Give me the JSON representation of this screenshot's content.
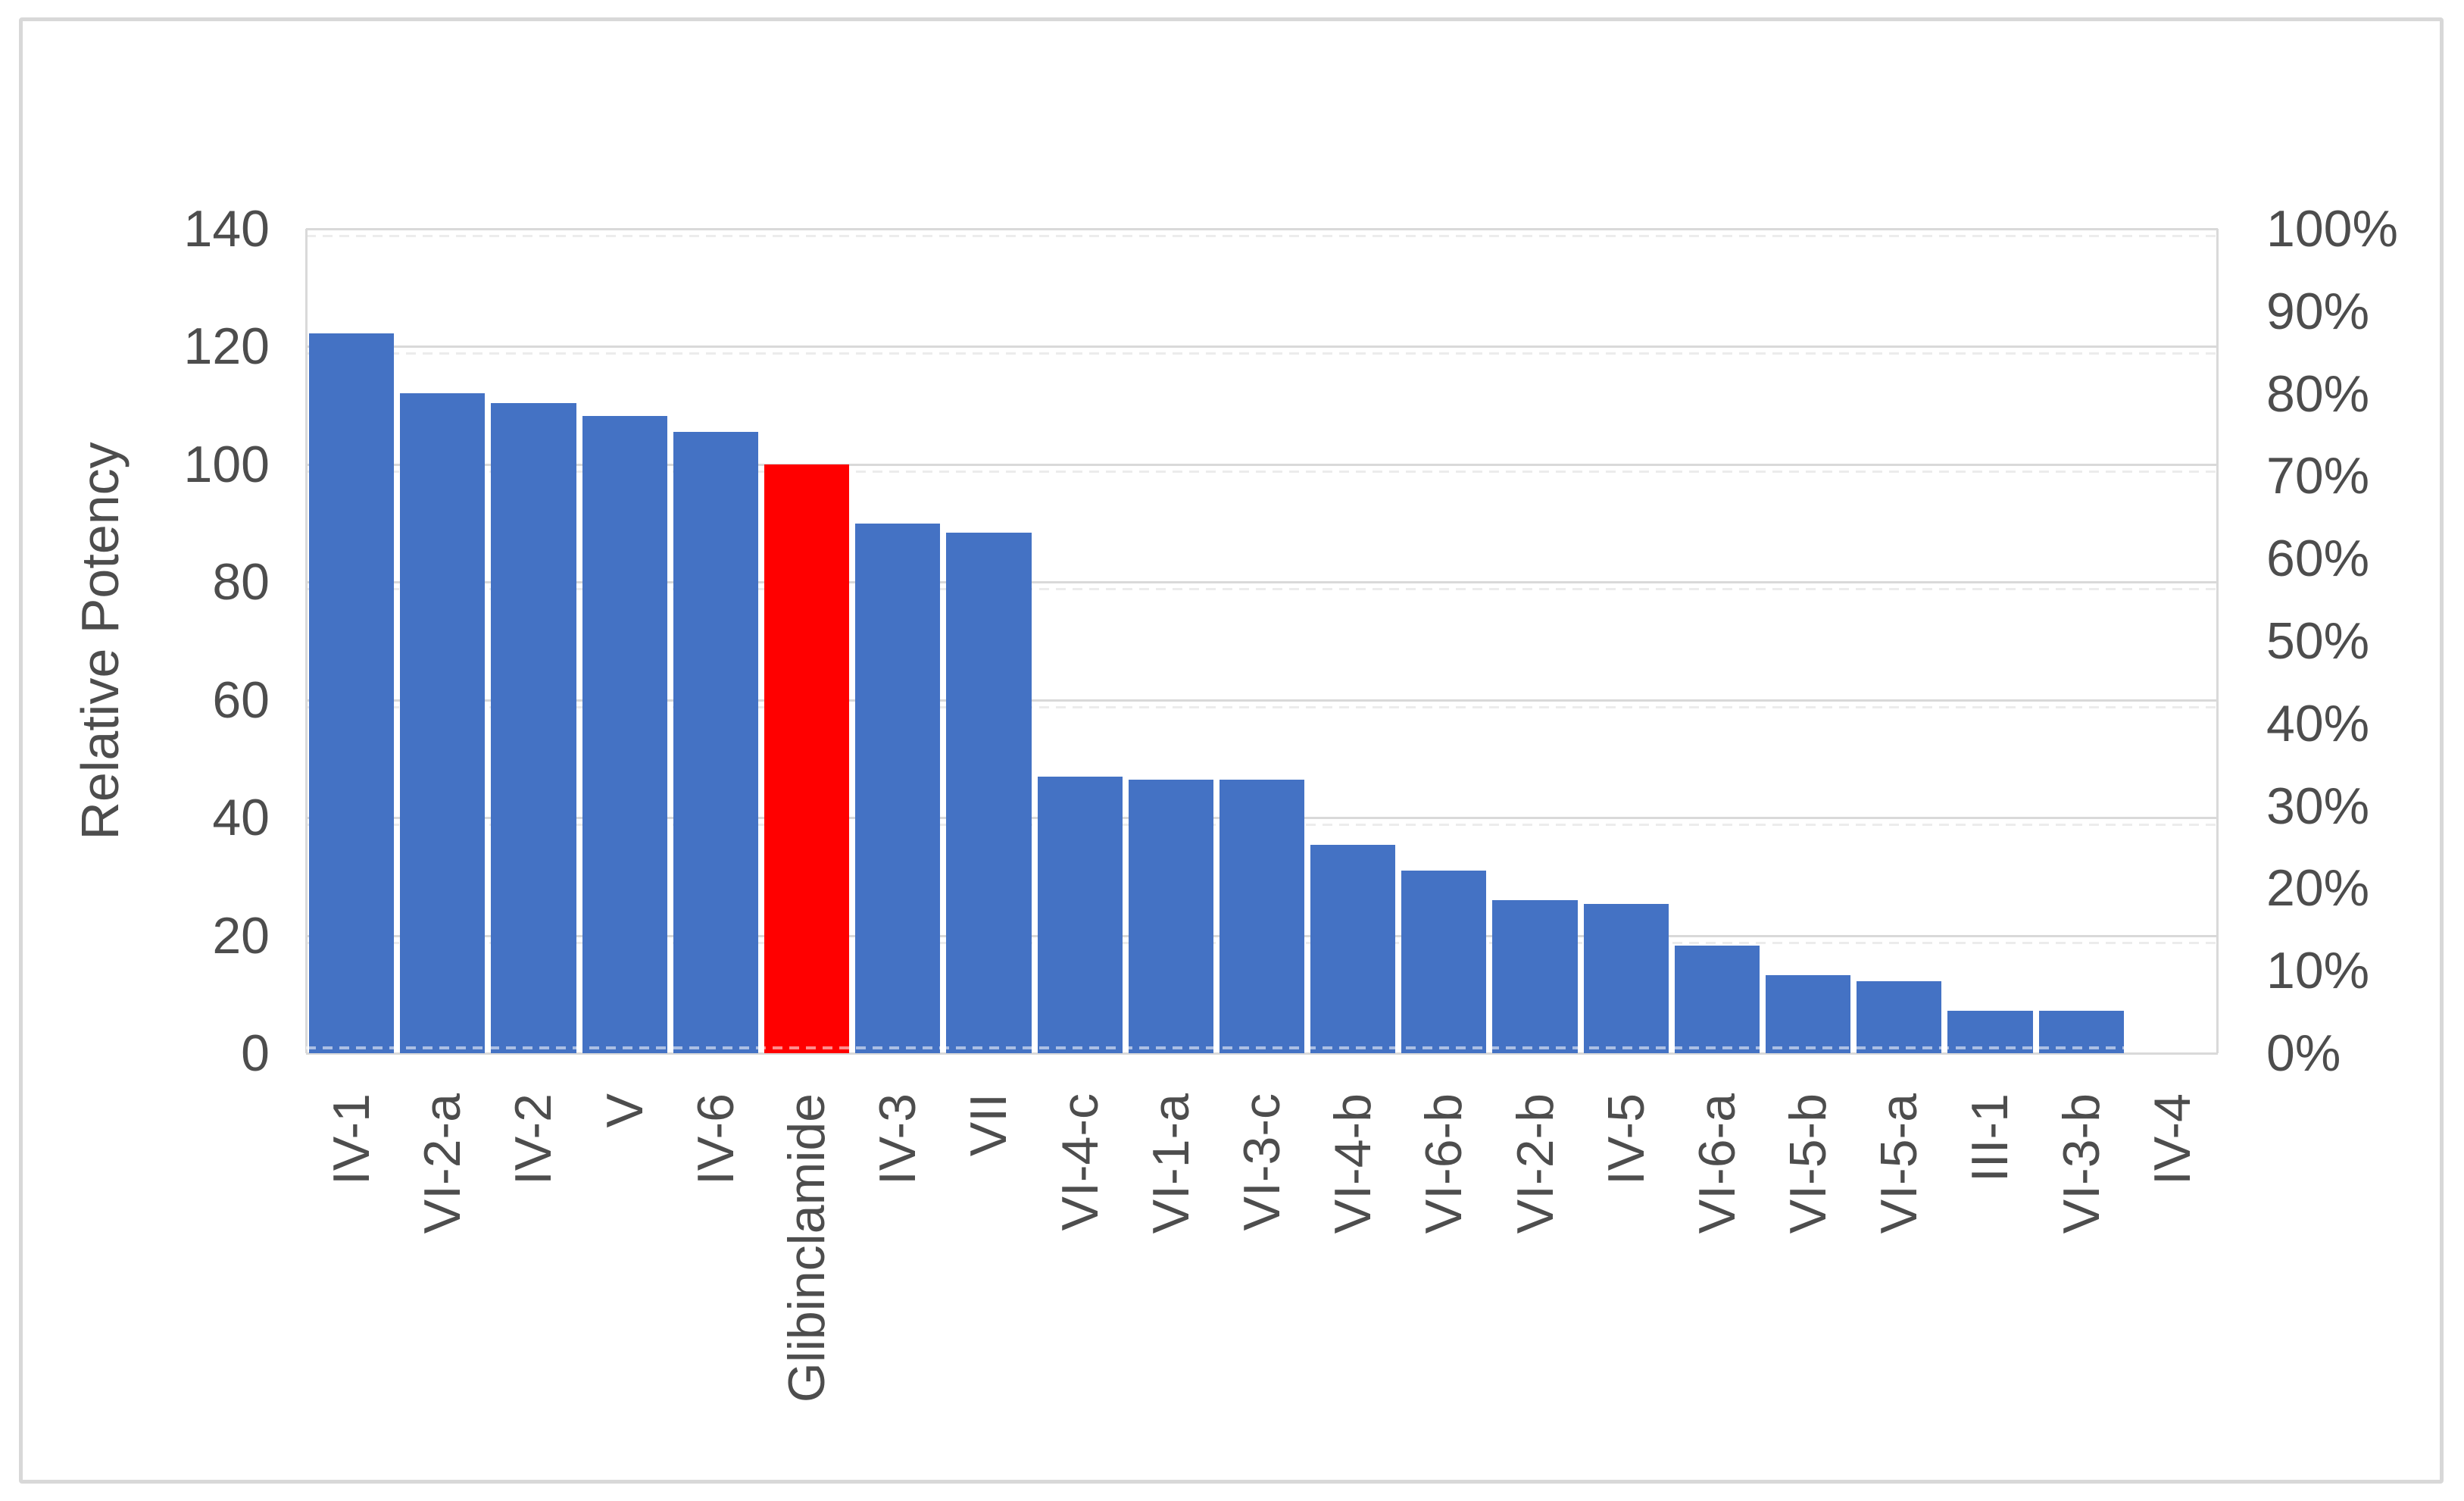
{
  "style": {
    "background": "#FFFFFF",
    "frame_color": "#D8D8D8",
    "gridline_color": "#D9D9D9",
    "text_color": "#4D4D4D"
  },
  "chart_data": {
    "type": "bar",
    "title": "",
    "xlabel": "",
    "ylabel": "Relative Potency",
    "legend_position": "none",
    "grid": "on",
    "categories": [
      "IV-1",
      "VI-2-a",
      "IV-2",
      "V",
      "IV-6",
      "Glibinclamide",
      "IV-3",
      "VII",
      "VI-4-c",
      "VI-1-a",
      "VI-3-c",
      "VI-4-b",
      "VI-6-b",
      "VI-2-b",
      "IV-5",
      "VI-6-a",
      "VI-5-b",
      "VI-5-a",
      "III-1",
      "VI-3-b",
      "IV-4"
    ],
    "values": [
      122.2,
      112.1,
      110.4,
      108.2,
      105.5,
      100,
      90,
      88.4,
      47,
      46.4,
      46.5,
      35.4,
      31,
      26,
      25.4,
      18.3,
      13.3,
      12.2,
      7.2,
      7.2,
      0
    ],
    "highlight_category": "Glibinclamide",
    "bar_color_default": "#4472C4",
    "bar_color_highlight": "#FF0000",
    "left_axis": {
      "title": "Relative Potency",
      "min": 0,
      "max": 140,
      "ticks": [
        140,
        120,
        100,
        80,
        60,
        40,
        20,
        0
      ]
    },
    "right_axis": {
      "ticks": [
        "100%",
        "90%",
        "80%",
        "70%",
        "60%",
        "50%",
        "40%",
        "30%",
        "20%",
        "10%",
        "0%"
      ]
    }
  }
}
